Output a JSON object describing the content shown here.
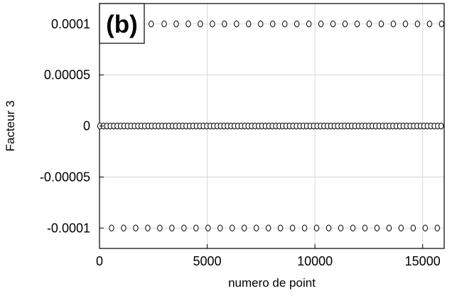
{
  "chart_data": {
    "type": "scatter",
    "panel_label": "(b)",
    "title": "",
    "xlabel": "numero de point",
    "ylabel": "Facteur 3",
    "xlim": [
      0,
      16000
    ],
    "ylim": [
      -0.00012,
      0.00012
    ],
    "xticks": [
      0,
      5000,
      10000,
      15000
    ],
    "xtick_labels": [
      "0",
      "5000",
      "10000",
      "15000"
    ],
    "yticks": [
      0.0001,
      5e-05,
      0,
      -5e-05,
      -0.0001
    ],
    "ytick_labels": [
      "0.0001",
      "0.00005",
      "0",
      "-0.00005",
      "-0.0001"
    ],
    "grid": true,
    "marker": "open-circle",
    "series": [
      {
        "y": 0.0001,
        "x": [
          2400,
          3000,
          3560,
          4120,
          4680,
          5240,
          5800,
          6360,
          6920,
          7480,
          8040,
          8600,
          9160,
          9720,
          10280,
          10840,
          11400,
          11960,
          12520,
          13080,
          13640,
          14200,
          14760,
          15320,
          15880
        ]
      },
      {
        "y": 0,
        "x": [
          20,
          180,
          340,
          500,
          660,
          820,
          980,
          1140,
          1300,
          1460,
          1620,
          1780,
          1940,
          2100,
          2260,
          2420,
          2580,
          2740,
          2900,
          3060,
          3220,
          3380,
          3540,
          3700,
          3860,
          4020,
          4180,
          4340,
          4500,
          4660,
          4820,
          4980,
          5140,
          5300,
          5460,
          5620,
          5780,
          5940,
          6100,
          6260,
          6420,
          6580,
          6740,
          6900,
          7060,
          7220,
          7380,
          7540,
          7700,
          7860,
          8020,
          8180,
          8340,
          8500,
          8660,
          8820,
          8980,
          9140,
          9300,
          9460,
          9620,
          9780,
          9940,
          10100,
          10260,
          10420,
          10580,
          10740,
          10900,
          11060,
          11220,
          11380,
          11540,
          11700,
          11860,
          12020,
          12180,
          12340,
          12500,
          12660,
          12820,
          12980,
          13140,
          13300,
          13460,
          13620,
          13780,
          13940,
          14100,
          14260,
          14420,
          14580,
          14740,
          14900,
          15060,
          15220,
          15380,
          15540,
          15700,
          15860
        ]
      },
      {
        "y": -0.0001,
        "x": [
          560,
          1120,
          1680,
          2240,
          2800,
          3360,
          3920,
          4480,
          5040,
          5600,
          6160,
          6720,
          7280,
          7840,
          8400,
          8960,
          9520,
          10080,
          10640,
          11200,
          11760,
          12320,
          12880,
          13440,
          14000,
          14560,
          15120,
          15680
        ]
      }
    ]
  }
}
